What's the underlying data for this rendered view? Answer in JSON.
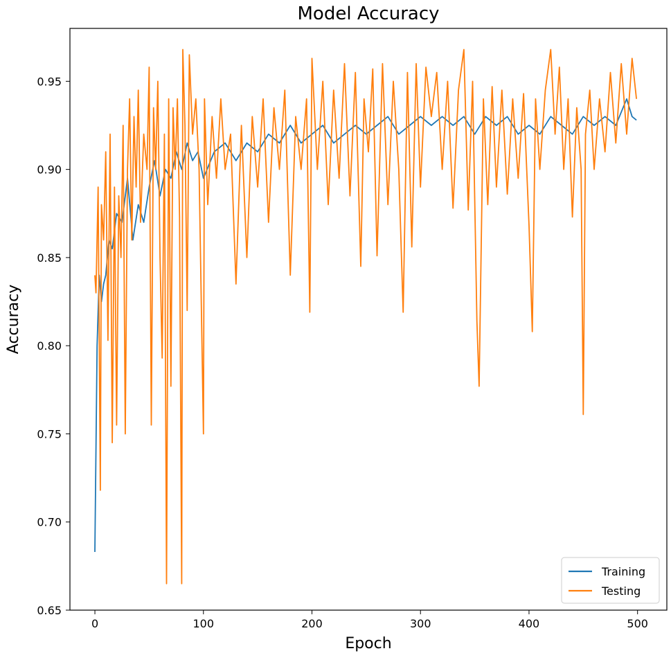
{
  "chart_data": {
    "type": "line",
    "title": "Model Accuracy",
    "xlabel": "Epoch",
    "ylabel": "Accuracy",
    "xlim": [
      -23,
      527
    ],
    "ylim": [
      0.65,
      0.98
    ],
    "xticks": [
      0,
      100,
      200,
      300,
      400,
      500
    ],
    "yticks": [
      0.65,
      0.7,
      0.75,
      0.8,
      0.85,
      0.9,
      0.95
    ],
    "ytick_labels": [
      "0.65",
      "0.70",
      "0.75",
      "0.80",
      "0.85",
      "0.90",
      "0.95"
    ],
    "grid": false,
    "legend_position": "bottom-right",
    "series": [
      {
        "name": "Training",
        "color": "#1f77b4",
        "x": [
          0,
          2,
          4,
          6,
          8,
          10,
          13,
          16,
          20,
          25,
          30,
          35,
          40,
          45,
          50,
          55,
          60,
          65,
          70,
          75,
          80,
          85,
          90,
          95,
          100,
          110,
          120,
          130,
          140,
          150,
          160,
          170,
          180,
          190,
          200,
          210,
          220,
          230,
          240,
          250,
          260,
          270,
          280,
          290,
          300,
          310,
          320,
          330,
          340,
          350,
          360,
          370,
          380,
          390,
          400,
          410,
          420,
          430,
          440,
          450,
          460,
          470,
          480,
          490,
          495,
          499
        ],
        "values": [
          0.683,
          0.8,
          0.84,
          0.825,
          0.835,
          0.84,
          0.86,
          0.855,
          0.875,
          0.87,
          0.895,
          0.86,
          0.88,
          0.87,
          0.89,
          0.905,
          0.885,
          0.9,
          0.895,
          0.91,
          0.9,
          0.915,
          0.905,
          0.91,
          0.895,
          0.91,
          0.915,
          0.905,
          0.915,
          0.91,
          0.92,
          0.915,
          0.925,
          0.915,
          0.92,
          0.925,
          0.915,
          0.92,
          0.925,
          0.92,
          0.925,
          0.93,
          0.92,
          0.925,
          0.93,
          0.925,
          0.93,
          0.925,
          0.93,
          0.92,
          0.93,
          0.925,
          0.93,
          0.92,
          0.925,
          0.92,
          0.93,
          0.925,
          0.92,
          0.93,
          0.925,
          0.93,
          0.925,
          0.94,
          0.93,
          0.928
        ]
      },
      {
        "name": "Testing",
        "color": "#ff7f0e",
        "x": [
          0,
          1,
          3,
          5,
          6,
          8,
          10,
          12,
          14,
          16,
          18,
          20,
          22,
          24,
          26,
          28,
          30,
          32,
          34,
          36,
          38,
          40,
          42,
          45,
          48,
          50,
          52,
          54,
          56,
          58,
          60,
          62,
          64,
          66,
          68,
          70,
          72,
          74,
          76,
          78,
          80,
          81,
          83,
          85,
          87,
          90,
          93,
          96,
          100,
          101,
          104,
          108,
          112,
          116,
          120,
          125,
          130,
          135,
          140,
          145,
          150,
          155,
          160,
          165,
          170,
          175,
          180,
          185,
          190,
          195,
          198,
          200,
          205,
          210,
          215,
          220,
          225,
          230,
          235,
          240,
          245,
          248,
          252,
          256,
          260,
          265,
          270,
          275,
          280,
          284,
          288,
          292,
          296,
          300,
          305,
          310,
          315,
          320,
          325,
          330,
          335,
          340,
          344,
          348,
          352,
          354,
          358,
          362,
          366,
          370,
          375,
          380,
          385,
          390,
          395,
          400,
          403,
          406,
          410,
          415,
          420,
          424,
          428,
          432,
          436,
          440,
          444,
          448,
          450,
          452,
          456,
          460,
          465,
          470,
          475,
          480,
          485,
          490,
          495,
          499
        ],
        "values": [
          0.84,
          0.83,
          0.89,
          0.718,
          0.88,
          0.86,
          0.91,
          0.803,
          0.92,
          0.745,
          0.89,
          0.755,
          0.885,
          0.85,
          0.925,
          0.75,
          0.9,
          0.94,
          0.86,
          0.93,
          0.89,
          0.945,
          0.87,
          0.92,
          0.9,
          0.958,
          0.755,
          0.935,
          0.9,
          0.95,
          0.85,
          0.793,
          0.92,
          0.665,
          0.94,
          0.777,
          0.935,
          0.9,
          0.94,
          0.873,
          0.665,
          0.968,
          0.925,
          0.82,
          0.965,
          0.92,
          0.94,
          0.9,
          0.75,
          0.94,
          0.88,
          0.93,
          0.895,
          0.94,
          0.9,
          0.92,
          0.835,
          0.925,
          0.85,
          0.93,
          0.89,
          0.94,
          0.87,
          0.935,
          0.9,
          0.945,
          0.84,
          0.93,
          0.9,
          0.94,
          0.819,
          0.963,
          0.9,
          0.95,
          0.88,
          0.945,
          0.895,
          0.96,
          0.885,
          0.955,
          0.845,
          0.94,
          0.91,
          0.957,
          0.851,
          0.96,
          0.88,
          0.95,
          0.9,
          0.819,
          0.955,
          0.856,
          0.96,
          0.89,
          0.958,
          0.93,
          0.955,
          0.9,
          0.95,
          0.878,
          0.945,
          0.968,
          0.877,
          0.95,
          0.814,
          0.777,
          0.94,
          0.88,
          0.947,
          0.89,
          0.945,
          0.886,
          0.94,
          0.895,
          0.943,
          0.868,
          0.808,
          0.94,
          0.9,
          0.945,
          0.968,
          0.92,
          0.958,
          0.9,
          0.94,
          0.873,
          0.935,
          0.9,
          0.761,
          0.92,
          0.945,
          0.9,
          0.94,
          0.91,
          0.955,
          0.915,
          0.96,
          0.92,
          0.963,
          0.94
        ]
      }
    ]
  }
}
